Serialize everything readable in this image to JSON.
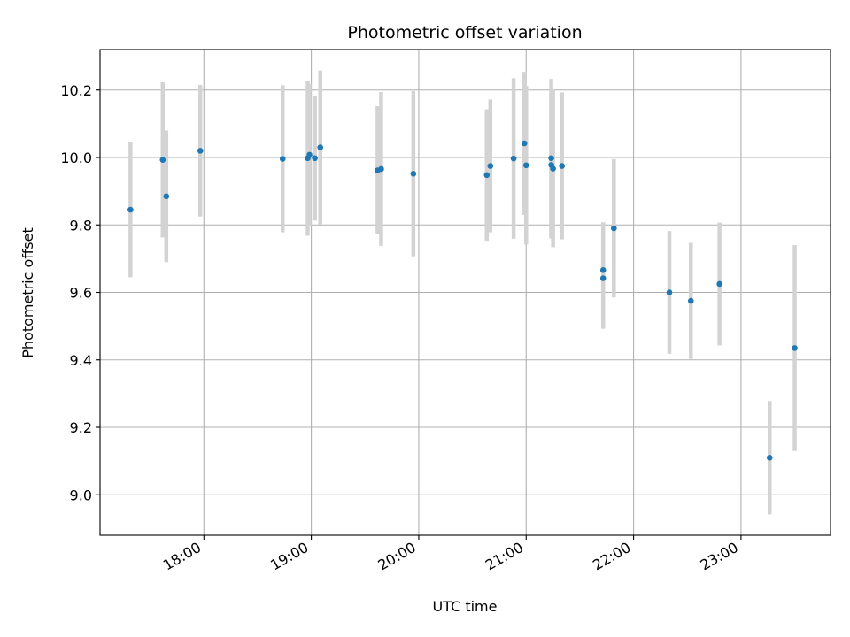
{
  "chart_data": {
    "type": "scatter",
    "title": "Photometric offset variation",
    "xlabel": "UTC time",
    "ylabel": "Photometric offset",
    "x_unit": "time of day (HH:MM, UTC)",
    "xlim": [
      "17:02",
      "23:50"
    ],
    "ylim": [
      8.88,
      10.32
    ],
    "x_ticks": [
      "18:00",
      "19:00",
      "20:00",
      "21:00",
      "22:00",
      "23:00"
    ],
    "y_ticks": [
      9.0,
      9.2,
      9.4,
      9.6,
      9.8,
      10.0,
      10.2
    ],
    "y_tick_labels": [
      "9.0",
      "9.2",
      "9.4",
      "9.6",
      "9.8",
      "10.0",
      "10.2"
    ],
    "grid": true,
    "legend": "none",
    "series": [
      {
        "marker_color": "#1f77b4",
        "errorbar_color": "#d3d3d3",
        "points": [
          {
            "x": "17:19",
            "y": 9.845,
            "err": 0.2
          },
          {
            "x": "17:37",
            "y": 9.993,
            "err": 0.23
          },
          {
            "x": "17:39",
            "y": 9.885,
            "err": 0.195
          },
          {
            "x": "17:58",
            "y": 10.02,
            "err": 0.195
          },
          {
            "x": "18:44",
            "y": 9.996,
            "err": 0.218
          },
          {
            "x": "18:58",
            "y": 9.998,
            "err": 0.23
          },
          {
            "x": "18:59",
            "y": 10.008,
            "err": 0.21
          },
          {
            "x": "19:02",
            "y": 9.998,
            "err": 0.185
          },
          {
            "x": "19:05",
            "y": 10.03,
            "err": 0.228
          },
          {
            "x": "19:37",
            "y": 9.962,
            "err": 0.19
          },
          {
            "x": "19:39",
            "y": 9.966,
            "err": 0.228
          },
          {
            "x": "19:57",
            "y": 9.952,
            "err": 0.245
          },
          {
            "x": "20:38",
            "y": 9.948,
            "err": 0.195
          },
          {
            "x": "20:40",
            "y": 9.975,
            "err": 0.197
          },
          {
            "x": "20:53",
            "y": 9.997,
            "err": 0.238
          },
          {
            "x": "20:59",
            "y": 10.042,
            "err": 0.212
          },
          {
            "x": "21:00",
            "y": 9.977,
            "err": 0.235
          },
          {
            "x": "21:14",
            "y": 9.998,
            "err": 0.235
          },
          {
            "x": "21:14",
            "y": 9.978,
            "err": 0.218
          },
          {
            "x": "21:15",
            "y": 9.967,
            "err": 0.233
          },
          {
            "x": "21:20",
            "y": 9.975,
            "err": 0.218
          },
          {
            "x": "21:43",
            "y": 9.666,
            "err": 0.142
          },
          {
            "x": "21:43",
            "y": 9.642,
            "err": 0.15
          },
          {
            "x": "21:49",
            "y": 9.79,
            "err": 0.205
          },
          {
            "x": "22:20",
            "y": 9.6,
            "err": 0.182
          },
          {
            "x": "22:32",
            "y": 9.575,
            "err": 0.172
          },
          {
            "x": "22:48",
            "y": 9.625,
            "err": 0.182
          },
          {
            "x": "23:16",
            "y": 9.11,
            "err": 0.168
          },
          {
            "x": "23:30",
            "y": 9.435,
            "err": 0.305
          }
        ]
      }
    ]
  }
}
